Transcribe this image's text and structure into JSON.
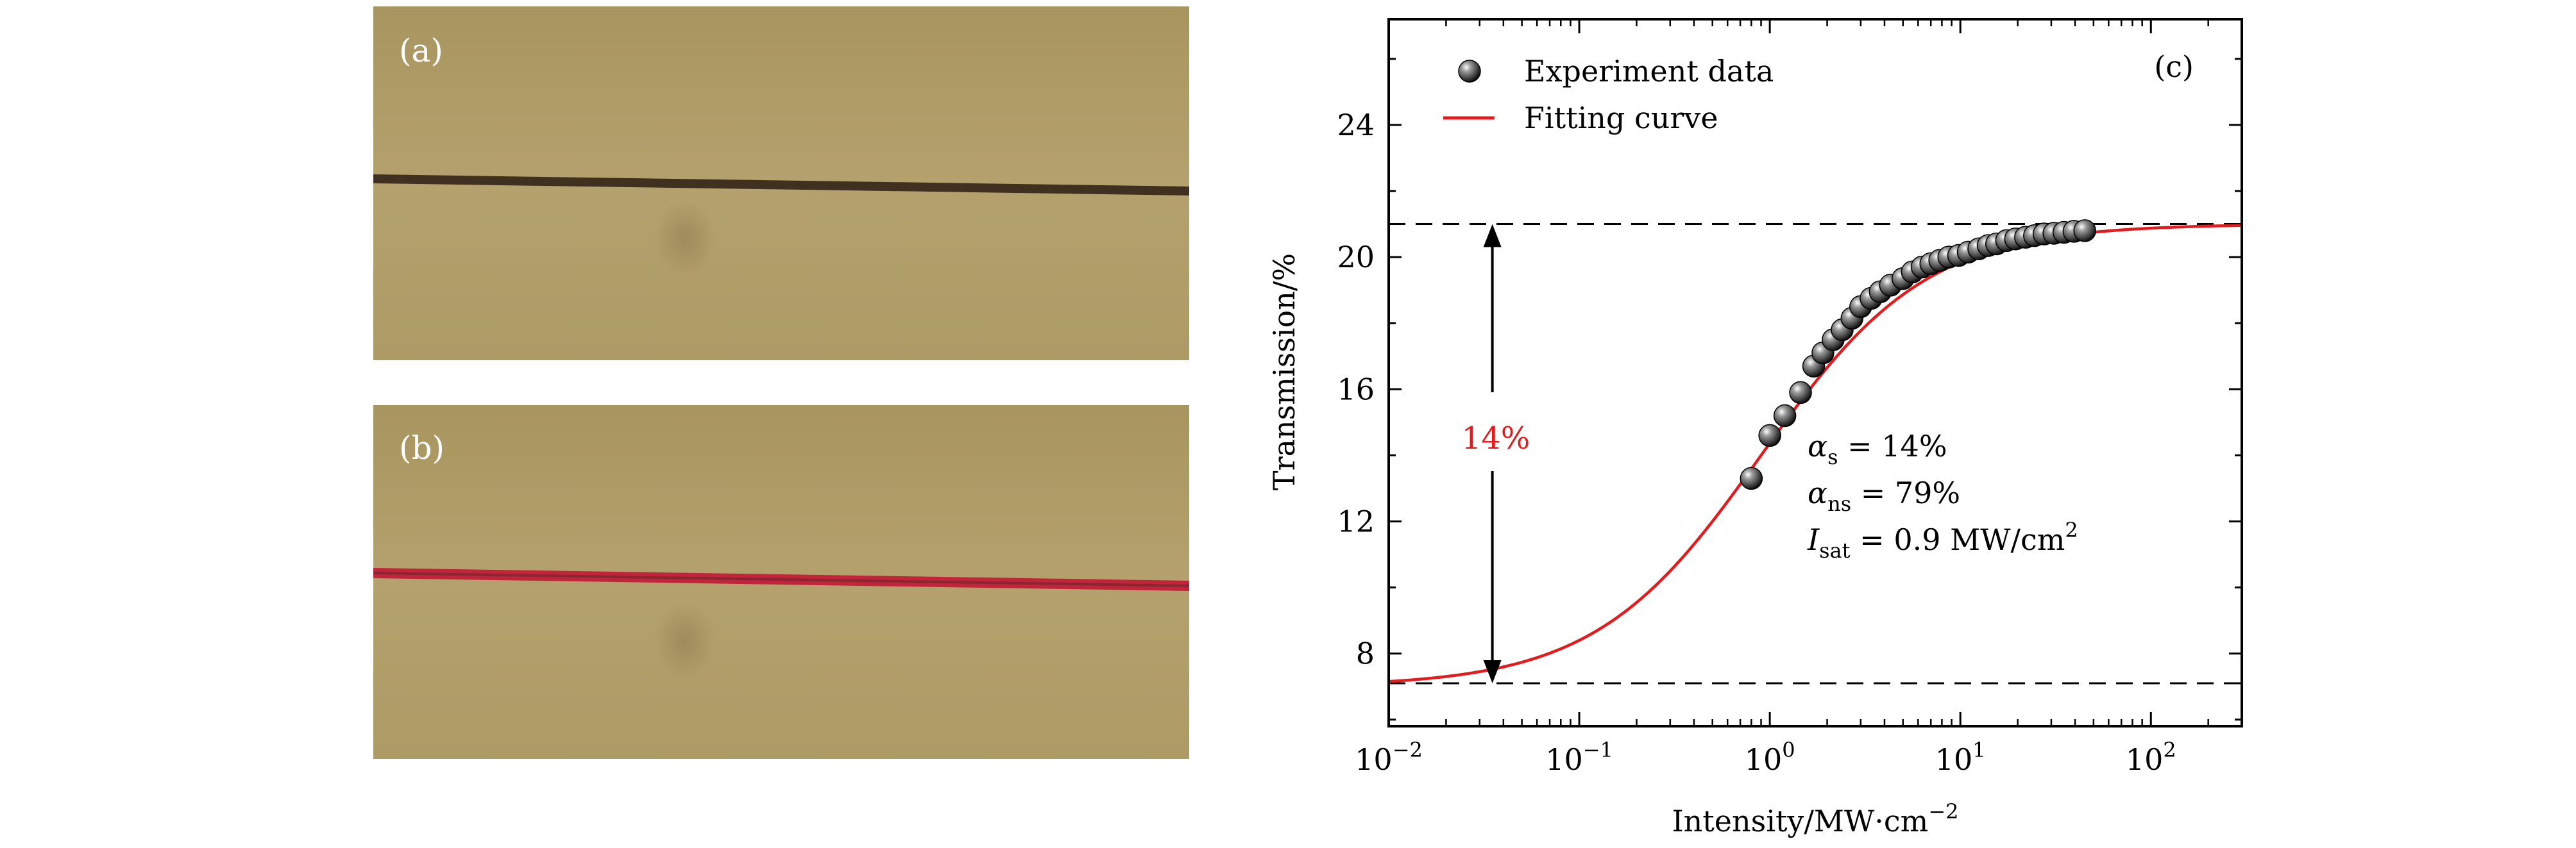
{
  "panels": {
    "a": {
      "label": "(a)"
    },
    "b": {
      "label": "(b)"
    },
    "c": {
      "label": "(c)"
    }
  },
  "colors": {
    "photo_background": "#b09d69",
    "photo_shade": "#a38f5e",
    "fiber_dark": "#3f3020",
    "fiber_red": "#c2243b",
    "fit_line": "#e41a1c",
    "annotation_red": "#e41a1c",
    "marker": "#1a1a1a",
    "axis": "#000000"
  },
  "chart_data": {
    "type": "scatter",
    "title": "",
    "xlabel": "Intensity/MW·cm",
    "xlabel_superscript": "−2",
    "ylabel": "Transmission/%",
    "xscale": "log",
    "xlim": [
      0.01,
      300
    ],
    "ylim": [
      5.8,
      27.2
    ],
    "y_ticks": [
      8,
      12,
      16,
      20,
      24
    ],
    "y_tick_labels": [
      "8",
      "12",
      "16",
      "20",
      "24"
    ],
    "y_minor_ticks": [
      6,
      10,
      14,
      18,
      22,
      26
    ],
    "x_ticks": [
      0.01,
      0.1,
      1,
      10,
      100
    ],
    "x_tick_labels": [
      {
        "base": "10",
        "exp": "−2"
      },
      {
        "base": "10",
        "exp": "−1"
      },
      {
        "base": "10",
        "exp": "0"
      },
      {
        "base": "10",
        "exp": "1"
      },
      {
        "base": "10",
        "exp": "2"
      }
    ],
    "legend": {
      "placement": "top-left",
      "entries": [
        {
          "name": "Experiment data",
          "marker": "sphere"
        },
        {
          "name": "Fitting curve",
          "marker": "line"
        }
      ]
    },
    "series": [
      {
        "name": "Experiment data",
        "kind": "scatter",
        "x": [
          0.8,
          1.0,
          1.2,
          1.45,
          1.7,
          1.9,
          2.15,
          2.4,
          2.7,
          3.0,
          3.4,
          3.8,
          4.3,
          5.0,
          5.6,
          6.3,
          7.0,
          7.8,
          8.7,
          9.8,
          11.0,
          12.5,
          14.0,
          15.5,
          17.5,
          19.5,
          22.0,
          24.5,
          27.5,
          31.0,
          35.0,
          39.5,
          45.0
        ],
        "y": [
          13.3,
          14.6,
          15.2,
          15.9,
          16.7,
          17.1,
          17.5,
          17.8,
          18.15,
          18.5,
          18.75,
          18.95,
          19.15,
          19.35,
          19.55,
          19.7,
          19.8,
          19.9,
          20.0,
          20.05,
          20.15,
          20.25,
          20.35,
          20.4,
          20.5,
          20.55,
          20.6,
          20.65,
          20.7,
          20.72,
          20.75,
          20.78,
          20.8
        ]
      },
      {
        "name": "Fitting curve",
        "kind": "line",
        "model": "saturable absorption: T = 100 - alpha_ns - alpha_s / (1 + I / I_sat)",
        "params": {
          "alpha_s": 14,
          "alpha_ns": 79,
          "I_sat": 0.9
        },
        "x_range": [
          0.01,
          300
        ]
      }
    ],
    "reference_lines": [
      {
        "name": "upper-asymptote",
        "y": 21,
        "style": "dashed"
      },
      {
        "name": "lower-asymptote",
        "y": 7.1,
        "style": "dashed"
      }
    ],
    "arrow_annotation": {
      "x": 0.035,
      "y_from": 7.1,
      "y_to": 21,
      "label": "14%"
    },
    "parameter_annotations": [
      {
        "symbol": "α",
        "sub": "s",
        "rest": " = 14%"
      },
      {
        "symbol": "α",
        "sub": "ns",
        "rest": " = 79%"
      },
      {
        "symbol": "I",
        "sub": "sat",
        "rest": " = 0.9 MW/cm",
        "sup": "2"
      }
    ]
  }
}
